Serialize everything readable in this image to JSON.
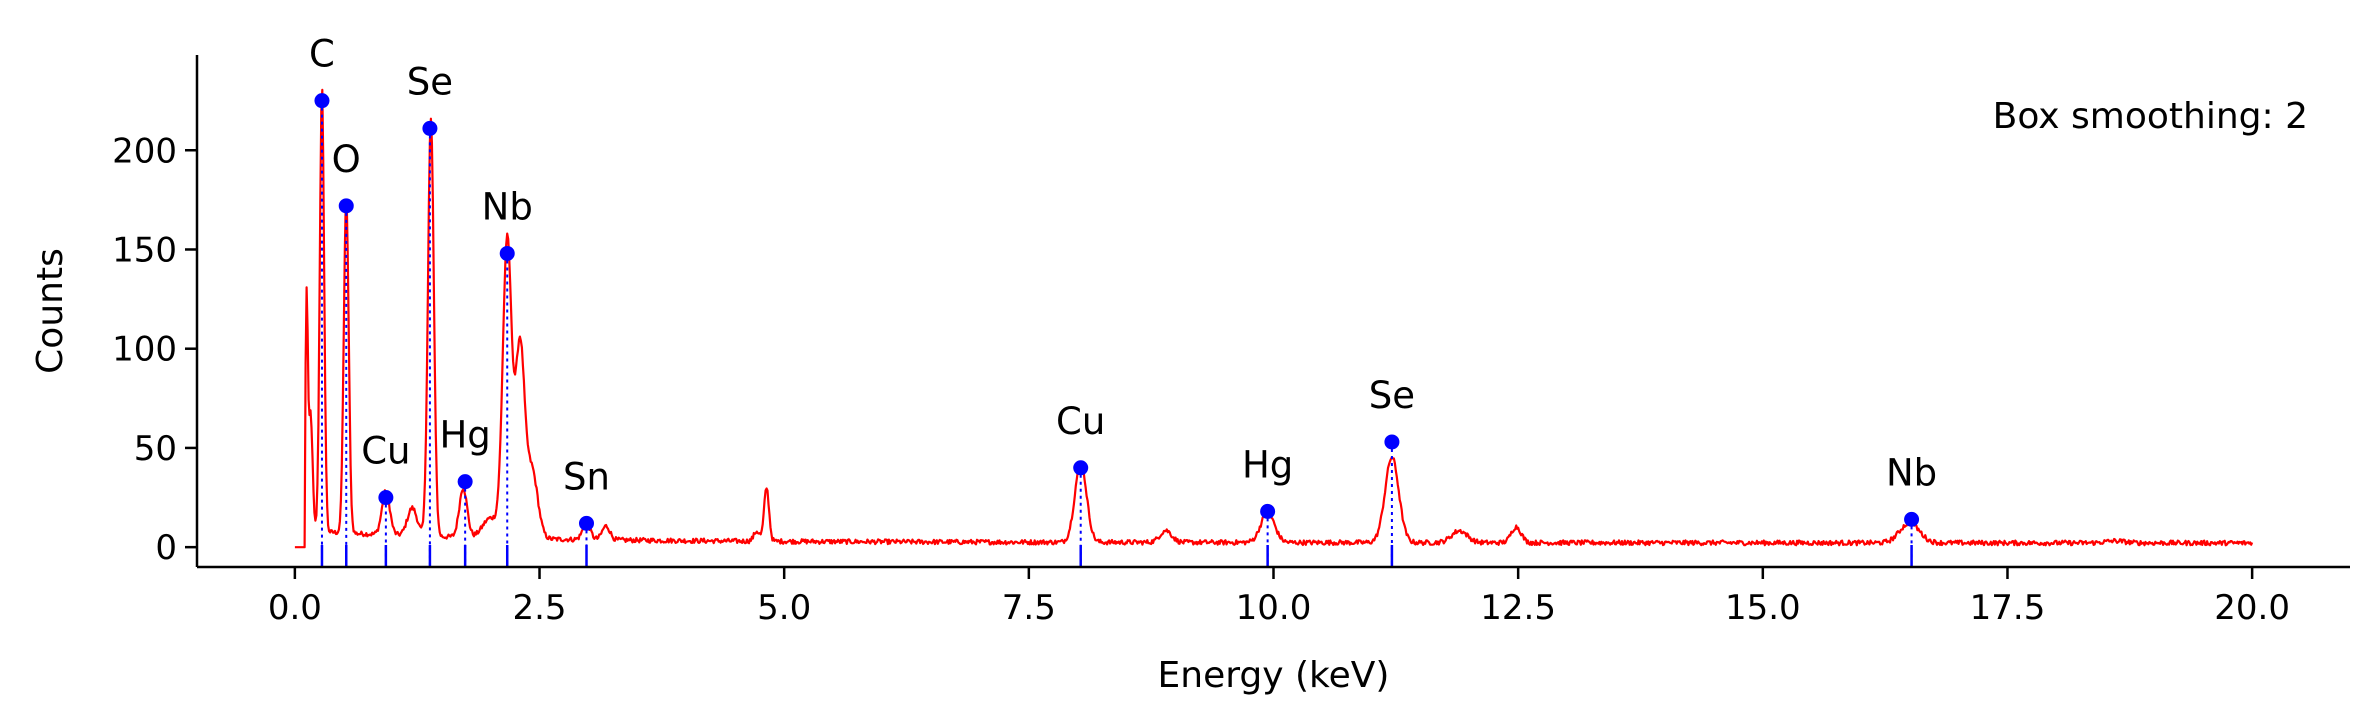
{
  "chart_data": {
    "type": "line",
    "xlabel": "Energy (keV)",
    "ylabel": "Counts",
    "xlim": [
      -1.0,
      21.0
    ],
    "ylim": [
      -10,
      248
    ],
    "x_ticks": [
      0.0,
      2.5,
      5.0,
      7.5,
      10.0,
      12.5,
      15.0,
      17.5,
      20.0
    ],
    "x_tick_labels": [
      "0.0",
      "2.5",
      "5.0",
      "7.5",
      "10.0",
      "12.5",
      "15.0",
      "17.5",
      "20.0"
    ],
    "y_ticks": [
      0,
      50,
      100,
      150,
      200
    ],
    "y_tick_labels": [
      "0",
      "50",
      "100",
      "150",
      "200"
    ],
    "grid": false,
    "annotation": "Box smoothing: 2",
    "colors": {
      "spectrum": "#ff0000",
      "markers": "#0000ff"
    },
    "spectrum": {
      "baseline": 2,
      "features": [
        {
          "x": 0.12,
          "y": 115,
          "w": 0.012
        },
        {
          "x": 0.16,
          "y": 60,
          "w": 0.02
        },
        {
          "x": 0.277,
          "y": 224,
          "w": 0.022
        },
        {
          "x": 0.525,
          "y": 170,
          "w": 0.025
        },
        {
          "x": 0.93,
          "y": 22,
          "w": 0.04
        },
        {
          "x": 1.2,
          "y": 14,
          "w": 0.05
        },
        {
          "x": 1.39,
          "y": 210,
          "w": 0.03
        },
        {
          "x": 1.72,
          "y": 25,
          "w": 0.04
        },
        {
          "x": 2.17,
          "y": 150,
          "w": 0.045
        },
        {
          "x": 2.3,
          "y": 95,
          "w": 0.045
        },
        {
          "x": 2.42,
          "y": 35,
          "w": 0.06
        },
        {
          "x": 2.0,
          "y": 10,
          "w": 0.08
        },
        {
          "x": 2.98,
          "y": 8,
          "w": 0.04
        },
        {
          "x": 3.18,
          "y": 7,
          "w": 0.04
        },
        {
          "x": 4.72,
          "y": 5,
          "w": 0.03
        },
        {
          "x": 4.82,
          "y": 27,
          "w": 0.025
        },
        {
          "x": 8.03,
          "y": 40,
          "w": 0.06
        },
        {
          "x": 8.9,
          "y": 6,
          "w": 0.06
        },
        {
          "x": 9.94,
          "y": 15,
          "w": 0.07
        },
        {
          "x": 11.21,
          "y": 43,
          "w": 0.07
        },
        {
          "x": 11.9,
          "y": 6,
          "w": 0.08
        },
        {
          "x": 12.48,
          "y": 8,
          "w": 0.05
        },
        {
          "x": 16.5,
          "y": 10,
          "w": 0.1
        },
        {
          "x": 18.6,
          "y": 1,
          "w": 0.1
        }
      ]
    },
    "peaks": [
      {
        "element": "C",
        "x": 0.277,
        "y": 225
      },
      {
        "element": "O",
        "x": 0.525,
        "y": 172
      },
      {
        "element": "Cu",
        "x": 0.93,
        "y": 25
      },
      {
        "element": "Se",
        "x": 1.38,
        "y": 211
      },
      {
        "element": "Hg",
        "x": 1.74,
        "y": 33
      },
      {
        "element": "Nb",
        "x": 2.17,
        "y": 148
      },
      {
        "element": "Sn",
        "x": 2.98,
        "y": 12
      },
      {
        "element": "Cu",
        "x": 8.03,
        "y": 40
      },
      {
        "element": "Hg",
        "x": 9.94,
        "y": 18
      },
      {
        "element": "Se",
        "x": 11.21,
        "y": 53
      },
      {
        "element": "Nb",
        "x": 16.52,
        "y": 14
      }
    ]
  }
}
